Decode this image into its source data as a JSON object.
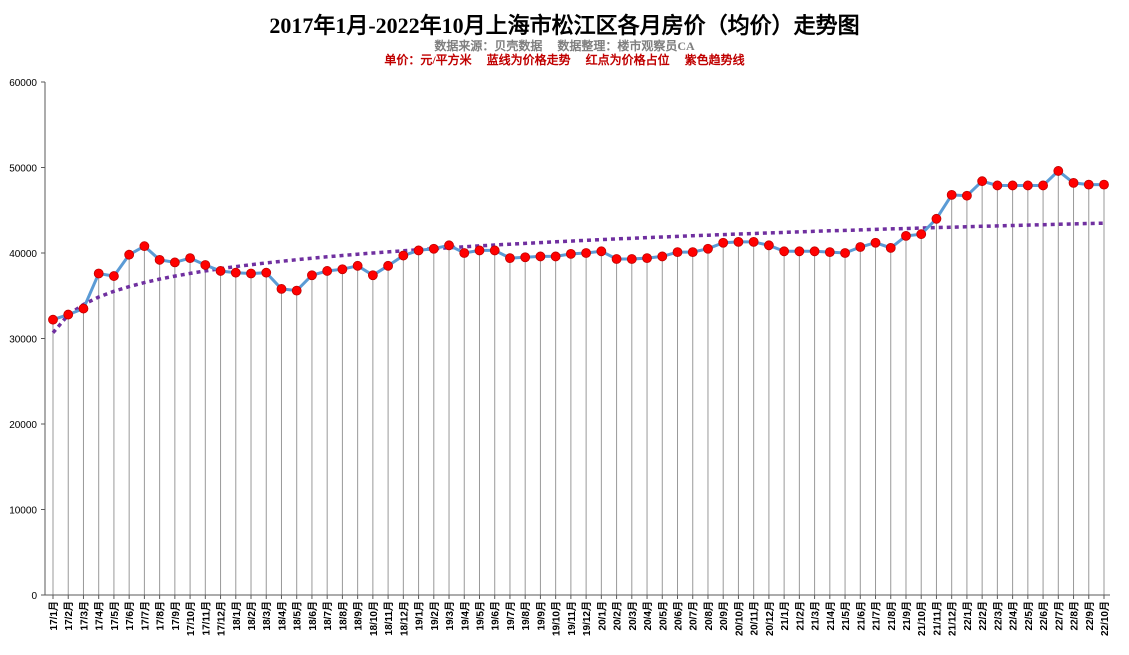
{
  "chart_data": {
    "type": "line",
    "title": "2017年1月-2022年10月上海市松江区各月房价（均价）走势图",
    "subtitle_source": "数据来源：贝壳数据　 数据整理：楼市观察员CA",
    "subtitle_legend": "单价：元/平方米　 蓝线为价格走势　 红点为价格占位　 紫色趋势线",
    "ylim": [
      0,
      60000
    ],
    "yticks": [
      0,
      10000,
      20000,
      30000,
      40000,
      50000,
      60000
    ],
    "grid": "vertical drop lines from each point to x-axis",
    "colors": {
      "line": "#5b9bd5",
      "marker": "#ff0000",
      "trend": "#7030a0",
      "droplines": "#999999"
    },
    "categories": [
      "17/1月",
      "17/2月",
      "17/3月",
      "17/4月",
      "17/5月",
      "17/6月",
      "17/7月",
      "17/8月",
      "17/9月",
      "17/10月",
      "17/11月",
      "17/12月",
      "18/1月",
      "18/2月",
      "18/3月",
      "18/4月",
      "18/5月",
      "18/6月",
      "18/7月",
      "18/8月",
      "18/9月",
      "18/10月",
      "18/11月",
      "18/12月",
      "19/1月",
      "19/2月",
      "19/3月",
      "19/4月",
      "19/5月",
      "19/6月",
      "19/7月",
      "19/8月",
      "19/9月",
      "19/10月",
      "19/11月",
      "19/12月",
      "20/1月",
      "20/2月",
      "20/3月",
      "20/4月",
      "20/5月",
      "20/6月",
      "20/7月",
      "20/8月",
      "20/9月",
      "20/10月",
      "20/11月",
      "20/12月",
      "21/1月",
      "21/2月",
      "21/3月",
      "21/4月",
      "21/5月",
      "21/6月",
      "21/7月",
      "21/8月",
      "21/9月",
      "21/10月",
      "21/11月",
      "21/12月",
      "22/1月",
      "22/2月",
      "22/3月",
      "22/4月",
      "22/5月",
      "22/6月",
      "22/7月",
      "22/8月",
      "22/9月",
      "22/10月"
    ],
    "series": [
      {
        "values": [
          32200,
          32800,
          33500,
          37600,
          37300,
          39800,
          40800,
          39200,
          38900,
          39400,
          38600,
          37900,
          37700,
          37600,
          37700,
          35800,
          35600,
          37400,
          37900,
          38100,
          38500,
          37400,
          38500,
          39700,
          40300,
          40500,
          40900,
          40000,
          40300,
          40300,
          39400,
          39500,
          39600,
          39600,
          39900,
          40000,
          40200,
          39300,
          39300,
          39400,
          39600,
          40100,
          40100,
          40500,
          41200,
          41300,
          41300,
          40900,
          40200,
          40200,
          40200,
          40100,
          40000,
          40700,
          41200,
          40600,
          42000,
          42200,
          44000,
          46800,
          46700,
          48400,
          47900,
          47900,
          47900,
          47900,
          49600,
          48200,
          48000,
          48000
        ]
      }
    ],
    "trendline": "logarithmic"
  }
}
